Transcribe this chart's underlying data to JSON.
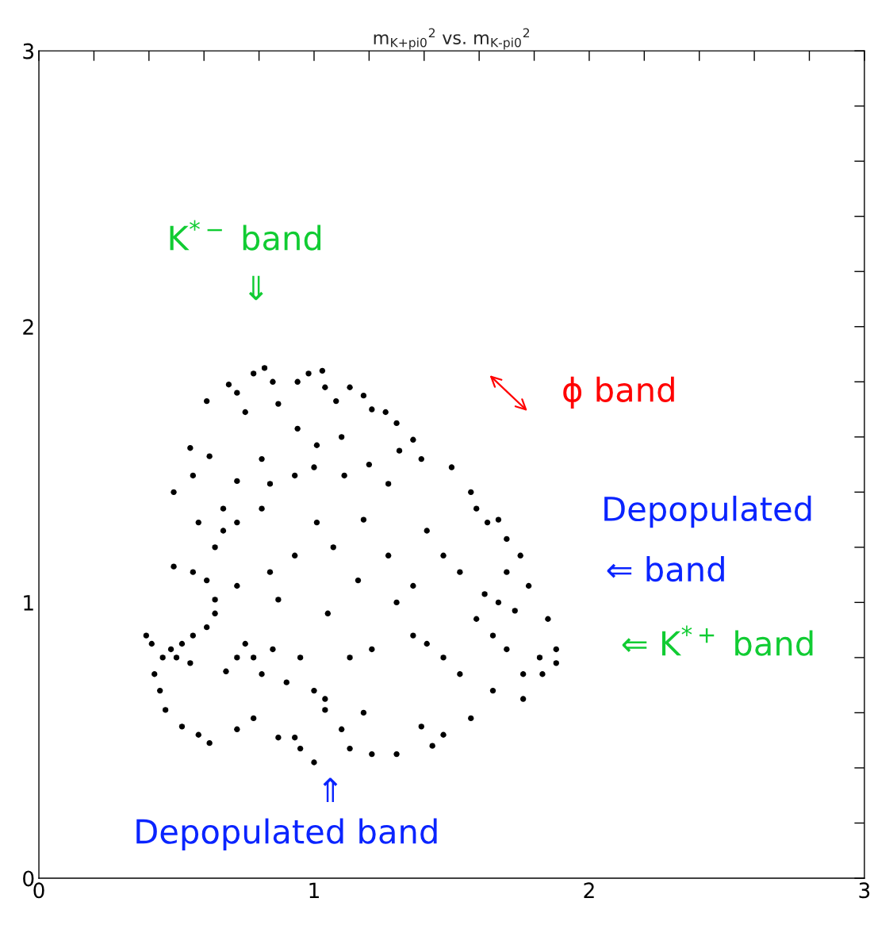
{
  "chart_data": {
    "type": "scatter",
    "title": "m$_{K+pi0}$$^{2}$ vs. m$_{K-pi0}$$^{2}$",
    "xlim": [
      0,
      3
    ],
    "ylim": [
      0,
      3
    ],
    "xticks": [
      0,
      {
        "value": 0.2,
        "label": null
      },
      {
        "value": 0.4,
        "label": null
      },
      {
        "value": 0.6,
        "label": null
      },
      {
        "value": 0.8,
        "label": null
      },
      1,
      {
        "value": 1.2,
        "label": null
      },
      {
        "value": 1.4,
        "label": null
      },
      {
        "value": 1.6,
        "label": null
      },
      {
        "value": 1.8,
        "label": null
      },
      2,
      {
        "value": 2.2,
        "label": null
      },
      {
        "value": 2.4,
        "label": null
      },
      {
        "value": 2.6,
        "label": null
      },
      {
        "value": 2.8,
        "label": null
      },
      3
    ],
    "yticks": [
      0,
      {
        "value": 0.2,
        "label": null
      },
      {
        "value": 0.4,
        "label": null
      },
      {
        "value": 0.6,
        "label": null
      },
      {
        "value": 0.8,
        "label": null
      },
      1,
      {
        "value": 1.2,
        "label": null
      },
      {
        "value": 1.4,
        "label": null
      },
      {
        "value": 1.6,
        "label": null
      },
      {
        "value": 1.8,
        "label": null
      },
      2,
      {
        "value": 2.2,
        "label": null
      },
      {
        "value": 2.4,
        "label": null
      },
      {
        "value": 2.6,
        "label": null
      },
      {
        "value": 2.8,
        "label": null
      },
      3
    ],
    "grid": false,
    "legend": false,
    "marker": "circle",
    "series": [
      {
        "color": "#000000",
        "x": [
          0.39,
          0.41,
          0.42,
          0.44,
          0.46,
          0.45,
          0.48,
          0.5,
          0.52,
          0.55,
          0.56,
          0.61,
          0.64,
          0.68,
          0.72,
          0.75,
          0.78,
          0.81,
          0.85,
          0.9,
          0.95,
          1.0,
          1.04,
          1.13,
          1.21,
          1.3,
          1.36,
          1.41,
          1.47,
          1.53,
          1.59,
          1.65,
          1.7,
          1.76,
          1.82,
          1.88,
          1.85,
          1.73,
          1.67,
          0.49,
          0.56,
          0.55,
          0.62,
          0.61,
          0.69,
          0.72,
          0.75,
          0.78,
          0.82,
          0.85,
          0.87,
          0.94,
          0.98,
          1.03,
          1.04,
          1.08,
          1.13,
          1.18,
          1.21,
          1.26,
          1.3,
          1.36,
          1.39,
          1.5,
          1.57,
          1.59,
          1.63,
          1.67,
          1.7,
          1.75,
          1.78,
          0.49,
          0.56,
          0.64,
          0.67,
          0.72,
          0.81,
          0.84,
          0.93,
          1.0,
          1.01,
          1.11,
          1.2,
          1.27,
          1.31,
          1.1,
          0.94,
          0.81,
          0.72,
          0.67,
          0.58,
          0.61,
          0.72,
          0.84,
          0.93,
          1.07,
          1.16,
          1.27,
          1.36,
          1.47,
          1.41,
          1.53,
          1.62,
          1.7,
          1.18,
          1.01,
          0.87,
          0.64,
          1.05,
          0.52,
          0.58,
          0.62,
          0.72,
          0.78,
          0.87,
          0.93,
          1.0,
          0.95,
          1.04,
          1.1,
          1.13,
          1.18,
          1.21,
          1.3,
          1.39,
          1.43,
          1.47,
          1.57,
          1.65,
          1.76,
          1.83,
          1.88
        ],
        "values": [
          0.88,
          0.85,
          0.74,
          0.68,
          0.61,
          0.8,
          0.83,
          0.8,
          0.85,
          0.78,
          0.88,
          0.91,
          0.96,
          0.75,
          0.8,
          0.85,
          0.8,
          0.74,
          0.83,
          0.71,
          0.8,
          0.68,
          0.65,
          0.8,
          0.83,
          1.0,
          0.88,
          0.85,
          0.8,
          0.74,
          0.94,
          0.88,
          0.83,
          0.74,
          0.8,
          0.83,
          0.94,
          0.97,
          1.0,
          1.4,
          1.46,
          1.56,
          1.53,
          1.73,
          1.79,
          1.76,
          1.69,
          1.83,
          1.85,
          1.8,
          1.72,
          1.8,
          1.83,
          1.84,
          1.78,
          1.73,
          1.78,
          1.75,
          1.7,
          1.69,
          1.65,
          1.59,
          1.52,
          1.49,
          1.4,
          1.34,
          1.29,
          1.3,
          1.23,
          1.17,
          1.06,
          1.13,
          1.11,
          1.2,
          1.26,
          1.29,
          1.34,
          1.43,
          1.46,
          1.49,
          1.57,
          1.46,
          1.5,
          1.43,
          1.55,
          1.6,
          1.63,
          1.52,
          1.44,
          1.34,
          1.29,
          1.08,
          1.06,
          1.11,
          1.17,
          1.2,
          1.08,
          1.17,
          1.06,
          1.17,
          1.26,
          1.11,
          1.03,
          1.11,
          1.3,
          1.29,
          1.01,
          1.01,
          0.96,
          0.55,
          0.52,
          0.49,
          0.54,
          0.58,
          0.51,
          0.51,
          0.42,
          0.47,
          0.61,
          0.54,
          0.47,
          0.6,
          0.45,
          0.45,
          0.55,
          0.48,
          0.52,
          0.58,
          0.68,
          0.65,
          0.74,
          0.78
        ]
      }
    ],
    "annotations": [
      "K$^{*−}$ band",
      "⇓",
      "ϕ band",
      "Depopulated",
      "⇐ band",
      "⇐ K$^{*+}$ band",
      "⇑",
      "Depopulated band"
    ]
  }
}
